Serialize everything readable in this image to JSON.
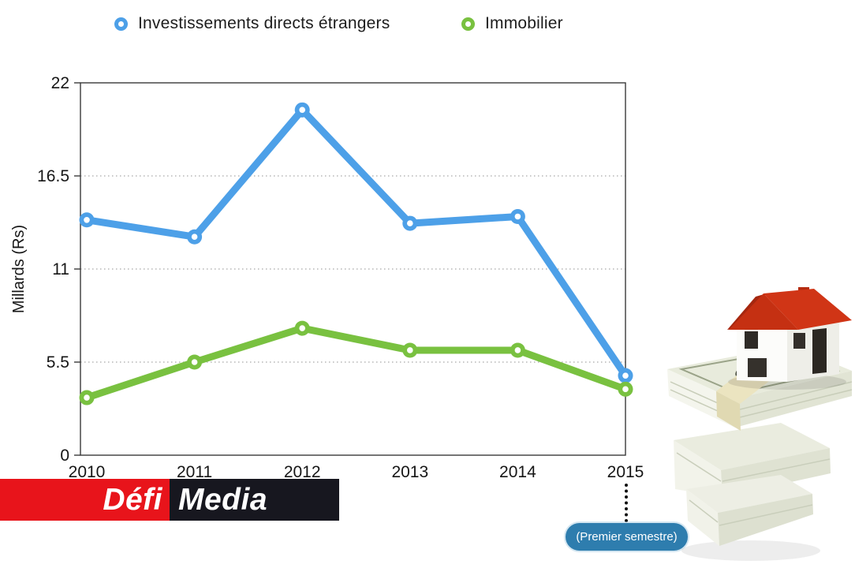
{
  "legend": {
    "items": [
      {
        "label": "Investissements directs étrangers",
        "color": "#4da0e8"
      },
      {
        "label": "Immobilier",
        "color": "#79c140"
      }
    ]
  },
  "chart_data": {
    "type": "line",
    "x": [
      "2010",
      "2011",
      "2012",
      "2013",
      "2014",
      "2015"
    ],
    "series": [
      {
        "name": "Investissements directs étrangers",
        "color": "#4da0e8",
        "values": [
          13.9,
          12.9,
          20.4,
          13.7,
          14.1,
          4.7
        ]
      },
      {
        "name": "Immobilier",
        "color": "#79c140",
        "values": [
          3.4,
          5.5,
          7.5,
          6.2,
          6.2,
          3.9
        ]
      }
    ],
    "ylabel": "Millards (Rs)",
    "xlabel": "",
    "ylim": [
      0,
      22
    ],
    "yticks": [
      "0",
      "5.5",
      "11",
      "16.5",
      "22"
    ],
    "grid": "horizontal-dotted",
    "legend_position": "top"
  },
  "annotation": {
    "label": "(Premier semestre)",
    "target_year": "2015",
    "badge_color": "#2e7dae"
  },
  "logo": {
    "part1": "Défi",
    "part2": "Media",
    "part1_bg": "#e8141b",
    "part2_bg": "#17171f"
  },
  "illustration": {
    "icon": "house-on-money-stacks-icon"
  }
}
